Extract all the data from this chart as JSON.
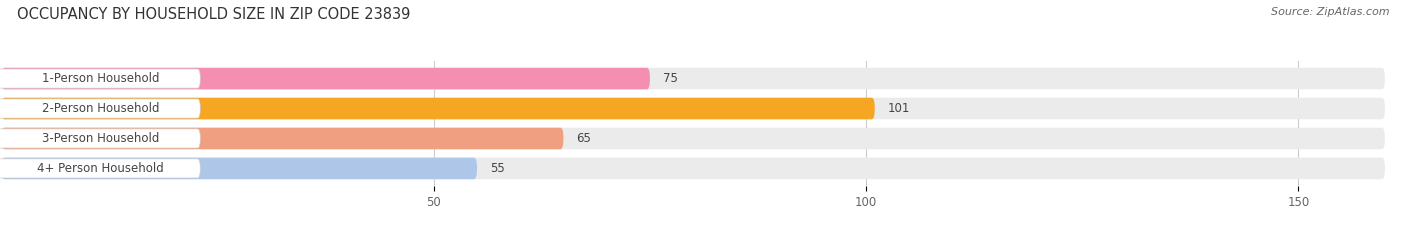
{
  "title": "OCCUPANCY BY HOUSEHOLD SIZE IN ZIP CODE 23839",
  "source": "Source: ZipAtlas.com",
  "categories": [
    "1-Person Household",
    "2-Person Household",
    "3-Person Household",
    "4+ Person Household"
  ],
  "values": [
    75,
    101,
    65,
    55
  ],
  "bar_colors": [
    "#f48fb1",
    "#f5a623",
    "#f0a080",
    "#aec6e8"
  ],
  "background_color": "#ffffff",
  "bar_bg_color": "#ebebeb",
  "xlim": [
    0,
    160
  ],
  "xticks": [
    50,
    100,
    150
  ],
  "bar_height": 0.72,
  "title_fontsize": 10.5,
  "source_fontsize": 8,
  "label_fontsize": 8.5,
  "value_fontsize": 8.5
}
